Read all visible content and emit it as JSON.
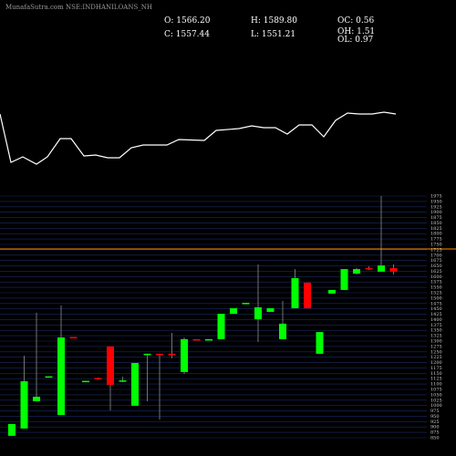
{
  "title": "MunafaSutra.com NSE:INDHANILOANS_NH",
  "info": {
    "o": "O: 1566.20",
    "h": "H: 1589.80",
    "oc": "OC: 0.56",
    "c": "C: 1557.44",
    "l": "L: 1551.21",
    "oh": "OH: 1.51",
    "ol": "OL: 0.97"
  },
  "chart_data": [
    {
      "type": "line",
      "color": "#ffffff",
      "ylim": [
        0,
        100
      ],
      "x": [
        0,
        12,
        25,
        40,
        52,
        66,
        78,
        92,
        105,
        118,
        131,
        144,
        157,
        183,
        196,
        224,
        237,
        262,
        276,
        289,
        302,
        315,
        328,
        342,
        355,
        368,
        381,
        394,
        408,
        421,
        434
      ],
      "xlim": [
        0,
        468
      ],
      "values": [
        75,
        22,
        28,
        20,
        28,
        48,
        48,
        29,
        30,
        27,
        27,
        38,
        41,
        41,
        47,
        46,
        57,
        59,
        62,
        60,
        60,
        53,
        63,
        63,
        50,
        68,
        76,
        75,
        75,
        77,
        75
      ]
    },
    {
      "type": "candlestick",
      "up_color": "#00ff00",
      "down_color": "#ff0000",
      "grid_color": "#1a2a66",
      "ylim": [
        850,
        1975
      ],
      "yticks": [
        850,
        875,
        900,
        925,
        950,
        975,
        1000,
        1025,
        1050,
        1075,
        1100,
        1125,
        1150,
        1175,
        1200,
        1225,
        1250,
        1275,
        1300,
        1325,
        1350,
        1375,
        1400,
        1425,
        1450,
        1475,
        1500,
        1525,
        1550,
        1575,
        1600,
        1625,
        1650,
        1675,
        1700,
        1725,
        1750,
        1775,
        1800,
        1825,
        1850,
        1875,
        1900,
        1925,
        1950,
        1975
      ],
      "hline": {
        "value": 1729,
        "color": "#ff8c00"
      },
      "open": [
        859,
        893,
        1020,
        1134,
        956,
        1319,
        1113,
        1128,
        1275,
        1115,
        999,
        1239,
        1241,
        1241,
        1156,
        1309,
        1305,
        1309,
        1427,
        1476,
        1402,
        1436,
        1309,
        1453,
        1572,
        1241,
        1521,
        1538,
        1614,
        1640,
        1623,
        1640
      ],
      "high": [
        914,
        1232,
        1432,
        1136,
        1466,
        1319,
        1115,
        1130,
        1275,
        1134,
        1198,
        1241,
        1241,
        1338,
        1317,
        1309,
        1309,
        1427,
        1453,
        1478,
        1657,
        1453,
        1487,
        1635,
        1572,
        1342,
        1538,
        1635,
        1640,
        1648,
        1975,
        1657
      ],
      "low": [
        859,
        893,
        1020,
        1132,
        956,
        1315,
        1111,
        1124,
        977,
        1109,
        999,
        1020,
        935,
        1220,
        1147,
        1305,
        1305,
        1309,
        1427,
        1476,
        1296,
        1436,
        1309,
        1453,
        1453,
        1241,
        1521,
        1538,
        1610,
        1630,
        1623,
        1610
      ],
      "close": [
        914,
        1113,
        1041,
        1136,
        1317,
        1315,
        1115,
        1126,
        1096,
        1117,
        1198,
        1241,
        1239,
        1239,
        1309,
        1305,
        1309,
        1427,
        1453,
        1478,
        1457,
        1453,
        1381,
        1593,
        1453,
        1342,
        1538,
        1635,
        1635,
        1635,
        1652,
        1623
      ]
    }
  ]
}
